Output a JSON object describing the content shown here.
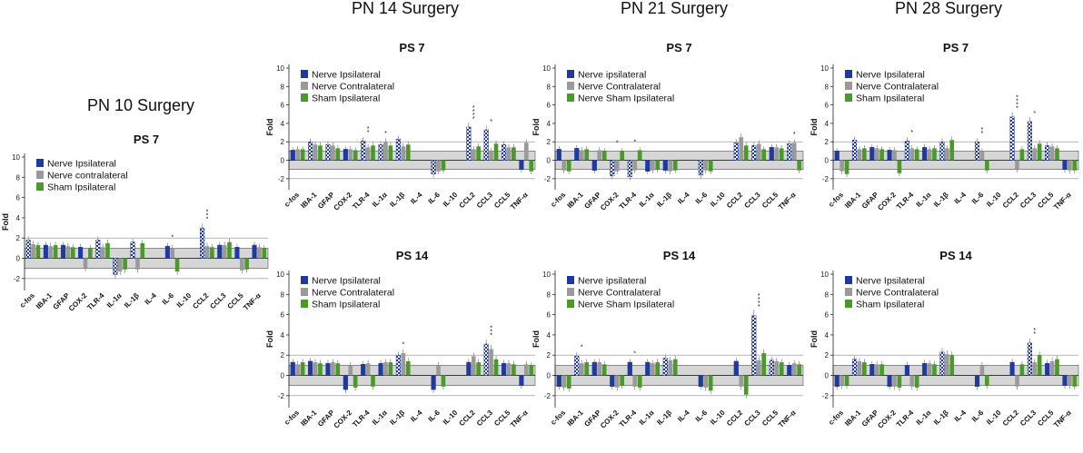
{
  "palette": {
    "blue": "#1f3a9e",
    "gray": "#9a9a9a",
    "green": "#4a9a2a",
    "band": "#d6d6d6"
  },
  "chart_data": [
    {
      "type": "bar",
      "title": "PS 7",
      "column_title": "PN 10 Surgery",
      "ylabel": "Fold",
      "ylim": [
        -3,
        10
      ],
      "yticks": [
        -2,
        0,
        2,
        4,
        6,
        8,
        10
      ],
      "categories": [
        "c-fos",
        "IBA-1",
        "GFAP",
        "COX-2",
        "TLR-4",
        "IL-1α",
        "IL-1β",
        "IL-4",
        "IL-6",
        "IL-10",
        "CCL2",
        "CCL3",
        "CCL5",
        "TNF-α"
      ],
      "series": [
        {
          "name": "Nerve Ipsilateral",
          "values": [
            1.8,
            1.3,
            1.3,
            1.1,
            1.8,
            -1.6,
            1.6,
            0,
            1.2,
            0,
            3.0,
            1.3,
            1.1,
            1.3
          ]
        },
        {
          "name": "Nerve contralateral",
          "values": [
            1.4,
            1.2,
            1.2,
            -1.0,
            1.1,
            -1.3,
            -1.1,
            0,
            1.0,
            0,
            1.2,
            1.3,
            -1.2,
            1.1
          ]
        },
        {
          "name": "Sham  Ipsilateral",
          "values": [
            1.3,
            1.3,
            1.1,
            1.0,
            1.5,
            -1.1,
            1.5,
            0,
            -1.3,
            0,
            1.1,
            1.6,
            -1.1,
            1.0
          ]
        }
      ],
      "annotations": [
        {
          "category": "CCL2",
          "text": "* * *"
        },
        {
          "category": "IL-6",
          "text": "*"
        }
      ]
    },
    {
      "type": "bar",
      "title": "PS 7",
      "column_title": "PN 14 Surgery",
      "ylabel": "Fold",
      "ylim": [
        -3,
        10
      ],
      "yticks": [
        -2,
        0,
        2,
        4,
        6,
        8,
        10
      ],
      "categories": [
        "c-fos",
        "IBA-1",
        "GFAP",
        "COX-2",
        "TLR-4",
        "IL-1α",
        "IL-1β",
        "IL-4",
        "IL-6",
        "IL-10",
        "CCL2",
        "CCL3",
        "CCL5",
        "TNF-α"
      ],
      "series": [
        {
          "name": "Nerve Ipsilateral",
          "values": [
            1.1,
            2.0,
            1.7,
            1.2,
            2.1,
            1.7,
            2.3,
            0,
            -1.5,
            0,
            3.6,
            3.3,
            1.7,
            -1.0
          ]
        },
        {
          "name": "Nerve Contralateral",
          "values": [
            1.2,
            1.7,
            1.6,
            1.2,
            1.4,
            2.0,
            1.5,
            0,
            -1.2,
            0,
            1.2,
            1.0,
            1.4,
            1.9
          ]
        },
        {
          "name": "Sham  Ipsilateral",
          "values": [
            1.2,
            1.6,
            1.3,
            1.1,
            1.6,
            1.6,
            1.7,
            0,
            -1.1,
            0,
            1.5,
            1.8,
            1.4,
            -1.2
          ]
        }
      ],
      "annotations": [
        {
          "category": "CCL2",
          "text": "* * * *"
        },
        {
          "category": "CCL3",
          "text": "*"
        },
        {
          "category": "TLR-4",
          "text": "* *"
        },
        {
          "category": "IL-1α",
          "text": "*"
        }
      ]
    },
    {
      "type": "bar",
      "title": "PS 7",
      "column_title": "PN 21 Surgery",
      "ylabel": "Fold",
      "ylim": [
        -3,
        10
      ],
      "yticks": [
        -2,
        0,
        2,
        4,
        6,
        8,
        10
      ],
      "categories": [
        "c-fos",
        "IBA-1",
        "GFAP",
        "COX-2",
        "TLR-4",
        "IL-1α",
        "IL-1β",
        "IL-4",
        "IL-6",
        "IL-10",
        "CCL2",
        "CCL3",
        "CCL5",
        "TNF-α"
      ],
      "series": [
        {
          "name": "Nerve ipsilateral",
          "values": [
            1.2,
            1.3,
            -1.1,
            -1.7,
            -1.8,
            -1.2,
            -1.1,
            0,
            -1.6,
            0,
            1.9,
            1.6,
            1.4,
            1.8
          ]
        },
        {
          "name": "Nerve Contralateral",
          "values": [
            -1.1,
            1.1,
            1.1,
            -1.2,
            -1.1,
            -1.1,
            -1.2,
            0,
            -1.1,
            0,
            2.5,
            1.8,
            1.4,
            1.9
          ]
        },
        {
          "name": "Nerve Sham  Ipsilateral",
          "values": [
            -1.2,
            1.2,
            1.0,
            1.0,
            1.1,
            -1.0,
            -1.1,
            0,
            -1.2,
            0,
            1.6,
            1.2,
            1.3,
            -1.1
          ]
        }
      ],
      "annotations": [
        {
          "category": "COX-2",
          "text": "*"
        },
        {
          "category": "TLR-4",
          "text": "*"
        },
        {
          "category": "TNF-α",
          "text": "*"
        }
      ]
    },
    {
      "type": "bar",
      "title": "PS 7",
      "column_title": "PN 28 Surgery",
      "ylabel": "Fold",
      "ylim": [
        -3,
        10
      ],
      "yticks": [
        -2,
        0,
        2,
        4,
        6,
        8,
        10
      ],
      "categories": [
        "c-fos",
        "IBA-1",
        "GFAP",
        "COX-2",
        "TLR-4",
        "IL-1α",
        "IL-1β",
        "IL-4",
        "IL-6",
        "IL-10",
        "CCL2",
        "CCL3",
        "CCL5",
        "TNF-α"
      ],
      "series": [
        {
          "name": "Nerve Ipsilateral",
          "values": [
            1.0,
            2.2,
            1.4,
            1.1,
            2.1,
            1.4,
            2.0,
            0,
            2.0,
            0,
            4.7,
            4.2,
            1.6,
            -1.0
          ]
        },
        {
          "name": "Nerve Contralateral",
          "values": [
            -1.2,
            1.2,
            1.3,
            1.1,
            1.3,
            1.2,
            1.3,
            0,
            1.0,
            0,
            -1.0,
            1.3,
            1.5,
            -1.1
          ]
        },
        {
          "name": "Sham  Ipsilateral",
          "values": [
            -1.5,
            1.3,
            1.2,
            -1.4,
            1.2,
            1.3,
            2.2,
            0,
            -1.1,
            0,
            1.2,
            1.8,
            1.3,
            -1.1
          ]
        }
      ],
      "annotations": [
        {
          "category": "CCL2",
          "text": "* * * *"
        },
        {
          "category": "CCL3",
          "text": "*"
        },
        {
          "category": "IL-6",
          "text": "* *"
        },
        {
          "category": "TLR-4",
          "text": "*"
        }
      ]
    },
    {
      "type": "bar",
      "title": "PS 14",
      "column_title": "",
      "ylabel": "Fold",
      "ylim": [
        -3,
        10
      ],
      "yticks": [
        -2,
        0,
        2,
        4,
        6,
        8,
        10
      ],
      "categories": [
        "c-fos",
        "IBA-1",
        "GFAP",
        "COX-2",
        "TLR-4",
        "IL-1α",
        "IL-1β",
        "IL-4",
        "IL-6",
        "IL-10",
        "CCL2",
        "CCL3",
        "CCL5",
        "TNF-α"
      ],
      "series": [
        {
          "name": "Nerve Ipsilateral",
          "values": [
            1.3,
            1.4,
            1.2,
            -1.4,
            1.1,
            1.2,
            2.0,
            0,
            -1.4,
            0,
            1.3,
            3.1,
            1.2,
            -1.0
          ]
        },
        {
          "name": "Nerve Contralateral",
          "values": [
            1.1,
            1.3,
            1.3,
            1.0,
            1.2,
            1.3,
            2.2,
            0,
            1.0,
            0,
            1.9,
            2.6,
            1.2,
            1.1
          ]
        },
        {
          "name": "Sham  Ipsilateral",
          "values": [
            1.3,
            1.2,
            1.2,
            -1.2,
            -1.1,
            1.3,
            1.4,
            0,
            -1.1,
            0,
            1.3,
            1.6,
            1.1,
            1.0
          ]
        }
      ],
      "annotations": [
        {
          "category": "CCL3",
          "text": "* * *"
        },
        {
          "category": "IL-1β",
          "text": "*"
        }
      ]
    },
    {
      "type": "bar",
      "title": "PS 14",
      "column_title": "",
      "ylabel": "Fold",
      "ylim": [
        -3,
        10
      ],
      "yticks": [
        -2,
        0,
        2,
        4,
        6,
        8,
        10
      ],
      "categories": [
        "c-fos",
        "IBA-1",
        "GFAP",
        "COX-2",
        "TLR-4",
        "IL-1α",
        "IL-1β",
        "IL-4",
        "IL-6",
        "IL-10",
        "CCL2",
        "CCL3",
        "CCL5",
        "TNF-α"
      ],
      "series": [
        {
          "name": "Nerve ipsilateral",
          "values": [
            -1.1,
            1.9,
            1.3,
            -1.1,
            1.3,
            1.3,
            1.7,
            0,
            -1.1,
            0,
            1.4,
            5.9,
            1.5,
            1.0
          ]
        },
        {
          "name": "Nerve Contralateral",
          "values": [
            -1.2,
            1.2,
            1.3,
            -1.2,
            -1.1,
            1.2,
            1.5,
            0,
            -1.2,
            0,
            -1.1,
            1.5,
            1.4,
            1.2
          ]
        },
        {
          "name": "Nerve Sham  Ipsilateral",
          "values": [
            -1.3,
            1.3,
            1.1,
            -1.0,
            -1.2,
            1.3,
            1.6,
            0,
            -1.5,
            0,
            -1.9,
            2.2,
            1.3,
            1.1
          ]
        }
      ],
      "annotations": [
        {
          "category": "CCL3",
          "text": "* * * *"
        },
        {
          "category": "IBA-1",
          "text": "*"
        },
        {
          "category": "TLR-4",
          "text": "*"
        }
      ]
    },
    {
      "type": "bar",
      "title": "PS 14",
      "column_title": "",
      "ylabel": "Fold",
      "ylim": [
        -3,
        10
      ],
      "yticks": [
        -2,
        0,
        2,
        4,
        6,
        8,
        10
      ],
      "categories": [
        "c-fos",
        "IBA-1",
        "GFAP",
        "COX-2",
        "TLR-4",
        "IL-1α",
        "IL-1β",
        "IL-4",
        "IL-6",
        "IL-10",
        "CCL2",
        "CCL3",
        "CCL5",
        "TNF-α"
      ],
      "series": [
        {
          "name": "Nerve Ipsilateral",
          "values": [
            -1.1,
            1.6,
            1.1,
            -1.1,
            1.0,
            1.2,
            2.3,
            0,
            -1.1,
            0,
            1.3,
            3.2,
            1.2,
            -1.0
          ]
        },
        {
          "name": "Nerve Contralateral",
          "values": [
            -1.0,
            1.4,
            1.1,
            -1.1,
            -1.1,
            1.2,
            2.1,
            0,
            1.0,
            0,
            -1.1,
            1.3,
            1.4,
            -1.0
          ]
        },
        {
          "name": "Sham  Ipsilateral",
          "values": [
            -1.0,
            1.3,
            1.1,
            -1.2,
            -1.2,
            1.1,
            2.0,
            0,
            -1.0,
            0,
            1.1,
            2.0,
            1.6,
            -1.1
          ]
        }
      ],
      "annotations": [
        {
          "category": "CCL3",
          "text": "* *"
        }
      ]
    }
  ]
}
